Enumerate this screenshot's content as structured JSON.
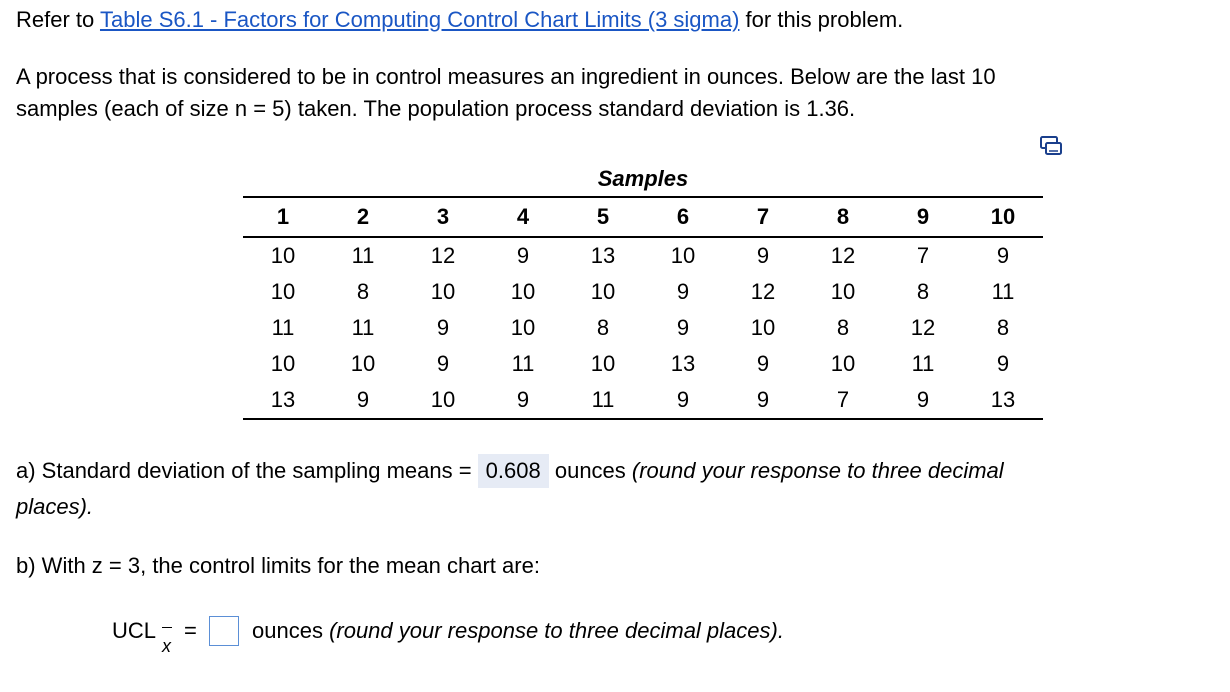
{
  "intro": {
    "prefix": "Refer to ",
    "link_text": "Table S6.1 - Factors for Computing Control Chart Limits (3 sigma)",
    "suffix": " for this problem."
  },
  "problem": {
    "line1": "A process that is considered to be in control measures an ingredient in ounces. Below are the last 10",
    "line2": "samples (each of size n = 5) taken. The population process standard deviation is 1.36."
  },
  "icons": {
    "copy": "copy-icon"
  },
  "table": {
    "title": "Samples",
    "headers": [
      "1",
      "2",
      "3",
      "4",
      "5",
      "6",
      "7",
      "8",
      "9",
      "10"
    ],
    "rows": [
      [
        "10",
        "11",
        "12",
        "9",
        "13",
        "10",
        "9",
        "12",
        "7",
        "9"
      ],
      [
        "10",
        "8",
        "10",
        "10",
        "10",
        "9",
        "12",
        "10",
        "8",
        "11"
      ],
      [
        "11",
        "11",
        "9",
        "10",
        "8",
        "9",
        "10",
        "8",
        "12",
        "8"
      ],
      [
        "10",
        "10",
        "9",
        "11",
        "10",
        "13",
        "9",
        "10",
        "11",
        "9"
      ],
      [
        "13",
        "9",
        "10",
        "9",
        "11",
        "9",
        "9",
        "7",
        "9",
        "13"
      ]
    ]
  },
  "part_a": {
    "prefix": "a) Standard deviation of the sampling means = ",
    "answer": "0.608",
    "units": " ounces ",
    "note": "(round your response to three decimal",
    "note_cont": "places)."
  },
  "part_b": {
    "text": "b) With z = 3, the control limits for the mean chart are:"
  },
  "ucl": {
    "label": "UCL",
    "subscript": "x",
    "equals": "=",
    "value": "",
    "units": "ounces ",
    "note": "(round your response to three decimal places)."
  }
}
